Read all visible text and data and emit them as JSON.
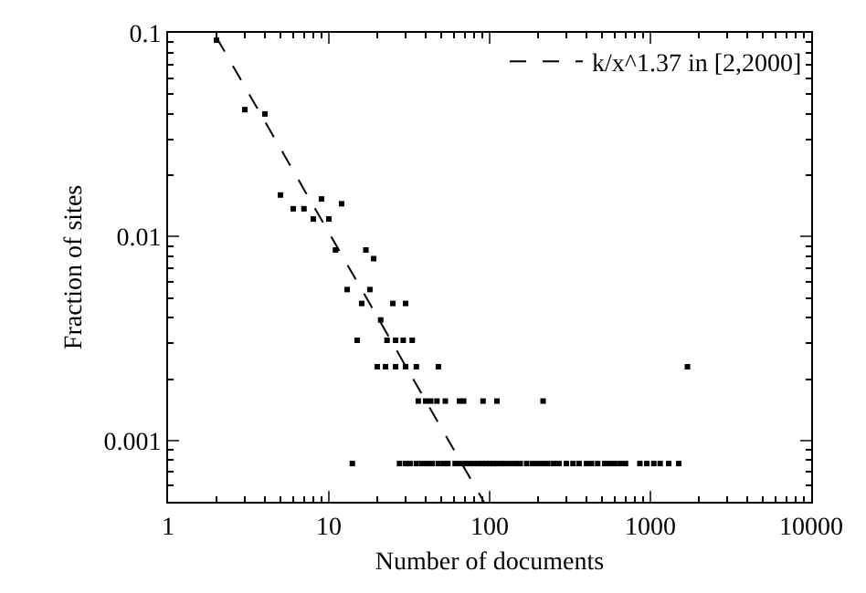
{
  "chart_data": {
    "type": "scatter",
    "xlabel": "Number of documents",
    "ylabel": "Fraction of sites",
    "log": "xy",
    "xlim": [
      1,
      10000
    ],
    "xticks": [
      1,
      10,
      100,
      1000,
      10000
    ],
    "ylim": [
      0.0005,
      0.1
    ],
    "yticks": [
      0.001,
      0.01,
      0.1
    ],
    "legend": "top right",
    "marker": "square",
    "series": [
      {
        "color": "#000000",
        "x": [
          2,
          3,
          4,
          5,
          6,
          7,
          8,
          9,
          10,
          12,
          11,
          17,
          19,
          13,
          18,
          16,
          25,
          30,
          21,
          15,
          23,
          26,
          29,
          33,
          20,
          22.5,
          26,
          30,
          35,
          48,
          1700,
          36,
          40,
          43,
          47,
          53,
          65,
          69,
          91,
          111,
          215,
          14,
          27.5,
          30,
          32,
          35,
          38,
          41,
          44,
          48,
          52,
          55,
          61,
          65,
          70,
          75,
          80,
          85,
          90,
          95,
          100,
          105,
          110,
          118,
          125,
          135,
          145,
          155,
          170,
          185,
          200,
          215,
          230,
          250,
          270,
          300,
          330,
          360,
          400,
          430,
          470,
          520,
          560,
          600,
          650,
          700,
          860,
          950,
          1050,
          1150,
          1300,
          1500
        ],
        "values": [
          0.092,
          0.042,
          0.04,
          0.016,
          0.0137,
          0.0137,
          0.0122,
          0.0153,
          0.0122,
          0.0145,
          0.0086,
          0.0086,
          0.0078,
          0.0055,
          0.0055,
          0.0047,
          0.0047,
          0.0047,
          0.0039,
          0.0031,
          0.0031,
          0.0031,
          0.0031,
          0.0031,
          0.0023,
          0.0023,
          0.0023,
          0.0023,
          0.0023,
          0.0023,
          0.0023,
          0.00156,
          0.00156,
          0.00156,
          0.00156,
          0.00156,
          0.00156,
          0.00156,
          0.00156,
          0.00156,
          0.00156,
          0.00077,
          0.00077,
          0.00077,
          0.00077,
          0.00077,
          0.00077,
          0.00077,
          0.00077,
          0.00077,
          0.00077,
          0.00077,
          0.00077,
          0.00077,
          0.00077,
          0.00077,
          0.00077,
          0.00077,
          0.00077,
          0.00077,
          0.00077,
          0.00077,
          0.00077,
          0.00077,
          0.00077,
          0.00077,
          0.00077,
          0.00077,
          0.00077,
          0.00077,
          0.00077,
          0.00077,
          0.00077,
          0.00077,
          0.00077,
          0.00077,
          0.00077,
          0.00077,
          0.00077,
          0.00077,
          0.00077,
          0.00077,
          0.00077,
          0.00077,
          0.00077,
          0.00077,
          0.00077,
          0.00077,
          0.00077,
          0.00077,
          0.00077,
          0.00077
        ]
      },
      {
        "type": "line",
        "name": "k/x^1.37 in [2,2000]",
        "color": "#000000",
        "line_style": "dashed",
        "marker": "none",
        "x": [
          2,
          92
        ],
        "values": [
          0.095,
          0.0005
        ]
      }
    ]
  }
}
